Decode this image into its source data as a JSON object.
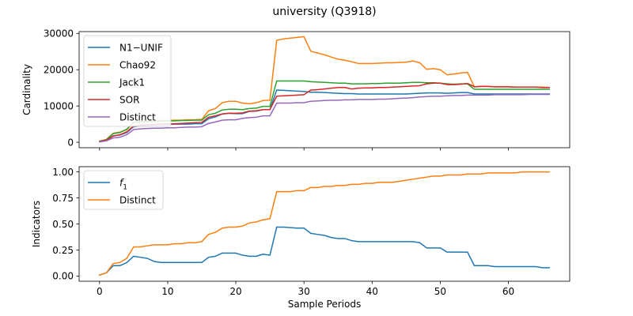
{
  "figure_title": "university (Q3918)",
  "chart_data": [
    {
      "type": "line",
      "ylabel": "Cardinality",
      "xlabel": "",
      "xlim": [
        -3,
        69
      ],
      "ylim": [
        -1500,
        30500
      ],
      "xticks": [
        0,
        10,
        20,
        30,
        40,
        50,
        60
      ],
      "xtick_labels_visible": false,
      "yticks": [
        0,
        10000,
        20000,
        30000
      ],
      "ytick_labels": [
        "0",
        "10000",
        "20000",
        "30000"
      ],
      "legend_position": "upper-left",
      "colors": {
        "N1-UNIF": "#1f77b4",
        "Chao92": "#ff7f0e",
        "Jack1": "#2ca02c",
        "SOR": "#d62728",
        "Distinct": "#9467bd"
      },
      "x": [
        0,
        1,
        2,
        3,
        4,
        5,
        6,
        7,
        8,
        9,
        10,
        11,
        12,
        13,
        14,
        15,
        16,
        17,
        18,
        19,
        20,
        21,
        22,
        23,
        24,
        25,
        26,
        27,
        28,
        29,
        30,
        31,
        32,
        33,
        34,
        35,
        36,
        37,
        38,
        39,
        40,
        41,
        42,
        43,
        44,
        45,
        46,
        47,
        48,
        49,
        50,
        51,
        52,
        53,
        54,
        55,
        56,
        57,
        58,
        59,
        60,
        61,
        62,
        63,
        64,
        65,
        66
      ],
      "series": [
        {
          "name": "N1−UNIF",
          "color": "#1f77b4",
          "values": [
            200,
            600,
            1800,
            2000,
            2700,
            4300,
            4500,
            4700,
            4800,
            4900,
            4900,
            5000,
            5000,
            5000,
            5100,
            5100,
            6500,
            7000,
            7800,
            8000,
            7900,
            7900,
            8500,
            8600,
            9000,
            9000,
            14400,
            14300,
            14200,
            14100,
            14000,
            13800,
            13800,
            13700,
            13600,
            13500,
            13400,
            13400,
            13300,
            13300,
            13300,
            13300,
            13300,
            13300,
            13300,
            13300,
            13400,
            13500,
            13600,
            13600,
            13600,
            13500,
            13600,
            13700,
            13700,
            13300,
            13300,
            13300,
            13300,
            13300,
            13300,
            13300,
            13300,
            13300,
            13300,
            13300,
            13300
          ]
        },
        {
          "name": "Chao92",
          "color": "#ff7f0e",
          "values": [
            300,
            800,
            2500,
            2800,
            3500,
            5500,
            5700,
            5900,
            6000,
            6000,
            6000,
            6100,
            6100,
            6200,
            6200,
            6300,
            8700,
            9300,
            10900,
            11300,
            11300,
            10800,
            10600,
            10900,
            11500,
            11600,
            28100,
            28500,
            28700,
            28900,
            29100,
            25100,
            24600,
            24100,
            23500,
            22900,
            22600,
            22200,
            21700,
            21700,
            21700,
            21800,
            21900,
            21900,
            22000,
            22100,
            22400,
            21900,
            20100,
            20300,
            20000,
            18600,
            18800,
            19100,
            19300,
            15300,
            15400,
            15400,
            15300,
            15300,
            15300,
            15200,
            15200,
            15200,
            15200,
            15200,
            15100
          ]
        },
        {
          "name": "Jack1",
          "color": "#2ca02c",
          "values": [
            300,
            700,
            2400,
            2700,
            3600,
            5500,
            5600,
            5700,
            5800,
            5800,
            5900,
            5900,
            6000,
            6000,
            6100,
            6100,
            7600,
            8000,
            8900,
            9100,
            9100,
            9000,
            9300,
            9400,
            9900,
            9900,
            16900,
            16900,
            16900,
            16900,
            16900,
            16700,
            16600,
            16500,
            16400,
            16300,
            16300,
            16100,
            16100,
            16100,
            16200,
            16200,
            16300,
            16300,
            16300,
            16400,
            16500,
            16500,
            16400,
            16400,
            16300,
            16100,
            16000,
            16100,
            16100,
            14600,
            14600,
            14600,
            14600,
            14600,
            14600,
            14600,
            14600,
            14600,
            14600,
            14600,
            14600
          ]
        },
        {
          "name": "SOR",
          "color": "#d62728",
          "values": [
            200,
            600,
            1700,
            2100,
            2900,
            4500,
            4700,
            4800,
            4900,
            5000,
            5100,
            5100,
            5200,
            5300,
            5400,
            5500,
            6900,
            7300,
            7800,
            8000,
            8000,
            8100,
            8600,
            8700,
            9000,
            9000,
            12700,
            12800,
            12900,
            13000,
            13100,
            14400,
            14500,
            14700,
            14900,
            15100,
            15100,
            14700,
            14900,
            15000,
            15000,
            15100,
            15100,
            15200,
            15300,
            15400,
            15500,
            15600,
            16100,
            16300,
            16300,
            15900,
            15900,
            16000,
            16200,
            15300,
            15400,
            15400,
            15300,
            15300,
            15300,
            15200,
            15200,
            15200,
            15200,
            15100,
            15100
          ]
        },
        {
          "name": "Distinct",
          "color": "#9467bd",
          "values": [
            100,
            400,
            1200,
            1400,
            2100,
            3500,
            3700,
            3800,
            3900,
            3900,
            4000,
            4000,
            4100,
            4200,
            4200,
            4300,
            5200,
            5600,
            6100,
            6200,
            6200,
            6600,
            6800,
            6900,
            7300,
            7300,
            10800,
            10800,
            10800,
            10900,
            10900,
            11300,
            11400,
            11500,
            11600,
            11600,
            11700,
            11700,
            11800,
            11800,
            11800,
            11900,
            11900,
            12000,
            12100,
            12200,
            12300,
            12500,
            12600,
            12700,
            12700,
            12800,
            12900,
            12900,
            13000,
            13000,
            13000,
            13000,
            13100,
            13100,
            13100,
            13100,
            13100,
            13200,
            13200,
            13200,
            13200
          ]
        }
      ]
    },
    {
      "type": "line",
      "ylabel": "Indicators",
      "xlabel": "Sample Periods",
      "xlim": [
        -3,
        69
      ],
      "ylim": [
        -0.05,
        1.05
      ],
      "xticks": [
        0,
        10,
        20,
        30,
        40,
        50,
        60
      ],
      "xtick_labels": [
        "0",
        "10",
        "20",
        "30",
        "40",
        "50",
        "60"
      ],
      "yticks": [
        0,
        0.25,
        0.5,
        0.75,
        1.0
      ],
      "ytick_labels": [
        "0.00",
        "0.25",
        "0.50",
        "0.75",
        "1.00"
      ],
      "legend_position": "upper-left",
      "colors": {
        "f1": "#1f77b4",
        "Distinct": "#ff7f0e"
      },
      "x": [
        0,
        1,
        2,
        3,
        4,
        5,
        6,
        7,
        8,
        9,
        10,
        11,
        12,
        13,
        14,
        15,
        16,
        17,
        18,
        19,
        20,
        21,
        22,
        23,
        24,
        25,
        26,
        27,
        28,
        29,
        30,
        31,
        32,
        33,
        34,
        35,
        36,
        37,
        38,
        39,
        40,
        41,
        42,
        43,
        44,
        45,
        46,
        47,
        48,
        49,
        50,
        51,
        52,
        53,
        54,
        55,
        56,
        57,
        58,
        59,
        60,
        61,
        62,
        63,
        64,
        65,
        66
      ],
      "series": [
        {
          "name_main": "f",
          "name_sub": "1",
          "color": "#1f77b4",
          "values": [
            0.01,
            0.03,
            0.1,
            0.1,
            0.13,
            0.19,
            0.18,
            0.17,
            0.14,
            0.13,
            0.13,
            0.13,
            0.13,
            0.13,
            0.13,
            0.13,
            0.18,
            0.19,
            0.22,
            0.22,
            0.22,
            0.2,
            0.19,
            0.19,
            0.21,
            0.2,
            0.47,
            0.47,
            0.465,
            0.46,
            0.46,
            0.41,
            0.4,
            0.39,
            0.37,
            0.36,
            0.36,
            0.34,
            0.33,
            0.33,
            0.33,
            0.33,
            0.33,
            0.33,
            0.33,
            0.33,
            0.33,
            0.32,
            0.27,
            0.27,
            0.27,
            0.23,
            0.23,
            0.23,
            0.23,
            0.1,
            0.1,
            0.1,
            0.09,
            0.09,
            0.09,
            0.09,
            0.09,
            0.09,
            0.09,
            0.08,
            0.08
          ]
        },
        {
          "name": "Distinct",
          "color": "#ff7f0e",
          "values": [
            0.01,
            0.03,
            0.12,
            0.13,
            0.17,
            0.28,
            0.28,
            0.29,
            0.3,
            0.3,
            0.3,
            0.31,
            0.31,
            0.32,
            0.32,
            0.33,
            0.4,
            0.42,
            0.46,
            0.47,
            0.47,
            0.48,
            0.51,
            0.52,
            0.54,
            0.55,
            0.81,
            0.81,
            0.81,
            0.82,
            0.82,
            0.85,
            0.85,
            0.86,
            0.86,
            0.87,
            0.87,
            0.88,
            0.88,
            0.89,
            0.89,
            0.9,
            0.9,
            0.9,
            0.91,
            0.92,
            0.93,
            0.94,
            0.95,
            0.96,
            0.96,
            0.97,
            0.97,
            0.97,
            0.98,
            0.98,
            0.98,
            0.99,
            0.99,
            0.99,
            0.99,
            0.99,
            1.0,
            1.0,
            1.0,
            1.0,
            1.0
          ]
        }
      ]
    }
  ]
}
